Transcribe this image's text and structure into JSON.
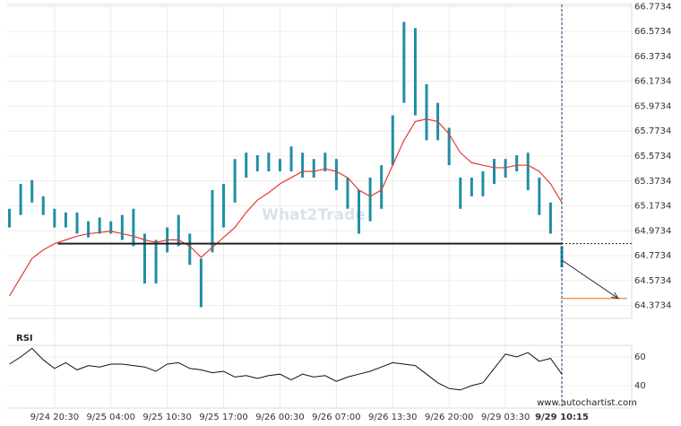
{
  "chart_data": {
    "type": "range-bar",
    "xlim": [
      -0.2,
      55.2
    ],
    "xticks": [
      {
        "value": 4,
        "label": "9/24 20:30"
      },
      {
        "value": 9,
        "label": "9/25 04:00"
      },
      {
        "value": 14,
        "label": "9/25 10:30"
      },
      {
        "value": 19,
        "label": "9/25 17:00"
      },
      {
        "value": 24,
        "label": "9/26 00:30"
      },
      {
        "value": 29,
        "label": "9/26 07:00"
      },
      {
        "value": 34,
        "label": "9/26 13:30"
      },
      {
        "value": 39,
        "label": "9/26 20:00"
      },
      {
        "value": 44,
        "label": "9/29 03:30"
      },
      {
        "value": 49,
        "label": "9/29 10:15"
      }
    ],
    "ylim": [
      64.27,
      66.79
    ],
    "yticks": [
      64.3734,
      64.5734,
      64.7734,
      64.9734,
      65.1734,
      65.3734,
      65.5734,
      65.7734,
      65.9734,
      66.1734,
      66.3734,
      66.5734,
      66.7734
    ],
    "grid": true,
    "bar_color": "#1f8ea3",
    "high": [
      65.15,
      65.35,
      65.38,
      65.25,
      65.15,
      65.12,
      65.12,
      65.05,
      65.08,
      65.05,
      65.1,
      65.15,
      64.95,
      64.9,
      65.0,
      65.1,
      64.95,
      64.75,
      65.3,
      65.35,
      65.55,
      65.6,
      65.58,
      65.6,
      65.55,
      65.65,
      65.6,
      65.55,
      65.6,
      65.55,
      65.4,
      65.3,
      65.4,
      65.5,
      65.9,
      66.65,
      66.6,
      66.15,
      66.0,
      65.8,
      65.4,
      65.4,
      65.45,
      65.55,
      65.55,
      65.58,
      65.6,
      65.4,
      65.2,
      64.85
    ],
    "low": [
      65.0,
      65.1,
      65.2,
      65.1,
      65.0,
      65.0,
      64.95,
      64.92,
      64.95,
      64.95,
      64.9,
      64.85,
      64.55,
      64.55,
      64.8,
      64.85,
      64.7,
      64.36,
      64.8,
      65.0,
      65.2,
      65.4,
      65.45,
      65.45,
      65.45,
      65.45,
      65.4,
      65.4,
      65.45,
      65.3,
      65.15,
      64.95,
      65.05,
      65.15,
      65.5,
      66.0,
      65.9,
      65.7,
      65.7,
      65.5,
      65.15,
      65.25,
      65.25,
      65.35,
      65.4,
      65.45,
      65.3,
      65.1,
      64.95,
      64.68
    ],
    "ma_color": "#e53935",
    "moving_average": [
      64.45,
      64.6,
      64.75,
      64.82,
      64.87,
      64.9,
      64.93,
      64.95,
      64.96,
      64.97,
      64.95,
      64.93,
      64.9,
      64.88,
      64.9,
      64.9,
      64.85,
      64.76,
      64.84,
      64.92,
      65.0,
      65.12,
      65.22,
      65.28,
      65.35,
      65.4,
      65.45,
      65.45,
      65.47,
      65.45,
      65.4,
      65.3,
      65.25,
      65.3,
      65.5,
      65.7,
      65.85,
      65.87,
      65.85,
      65.75,
      65.6,
      65.52,
      65.5,
      65.48,
      65.48,
      65.5,
      65.5,
      65.45,
      65.35,
      65.2
    ],
    "support_level": 64.87,
    "target_level": 64.43,
    "target_color": "#e8883a",
    "watermark": "What2Trade",
    "credit": "www.autochartist.com",
    "rsi": {
      "label": "RSI",
      "ylim": [
        24.375,
        68.125
      ],
      "yticks": [
        40,
        60
      ],
      "values": [
        55,
        60,
        66,
        58,
        52,
        56,
        51,
        54,
        53,
        55,
        55,
        54,
        53,
        50,
        55,
        56,
        52,
        51,
        49,
        50,
        46,
        47,
        45,
        47,
        48,
        44,
        48,
        46,
        47,
        43,
        46,
        48,
        50,
        53,
        56,
        55,
        54,
        48,
        42,
        38,
        37,
        40,
        42,
        52,
        62,
        60,
        63,
        57,
        59,
        48
      ]
    }
  }
}
